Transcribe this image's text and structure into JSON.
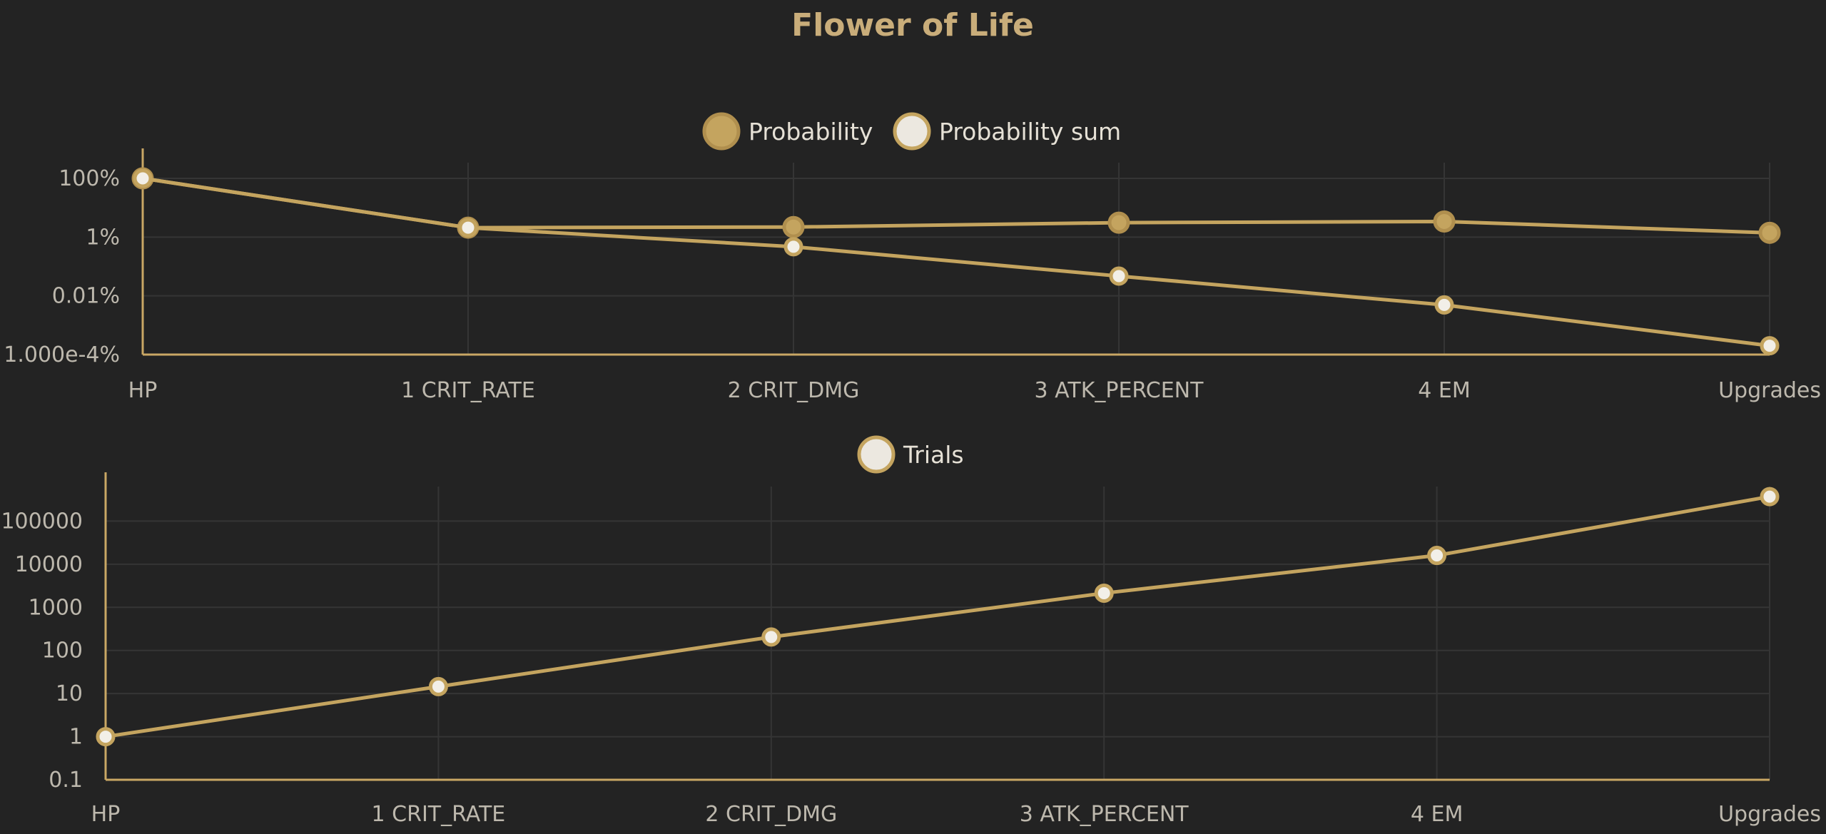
{
  "chart_data": [
    {
      "type": "line",
      "title": "Flower of Life",
      "categories": [
        "HP",
        "1 CRIT_RATE",
        "2 CRIT_DMG",
        "3 ATK_PERCENT",
        "4 EM",
        "Upgrades"
      ],
      "y_scale": "log",
      "y_tick_labels": [
        "100%",
        "1%",
        "0.01%",
        "1.000e-4%"
      ],
      "ylim": [
        "1.000e-4%",
        "100%"
      ],
      "grid": true,
      "legend_position": "top",
      "series": [
        {
          "name": "Probability",
          "values": [
            100,
            2.1,
            2.2,
            3.1,
            3.4,
            1.4
          ],
          "color": "#c4a45f",
          "marker": "filled"
        },
        {
          "name": "Probability sum",
          "values": [
            100,
            2.1,
            0.47,
            0.047,
            0.0049,
            0.0002
          ],
          "color": "#c4a45f",
          "marker": "hollow"
        }
      ]
    },
    {
      "type": "line",
      "categories": [
        "HP",
        "1 CRIT_RATE",
        "2 CRIT_DMG",
        "3 ATK_PERCENT",
        "4 EM",
        "Upgrades"
      ],
      "y_scale": "log",
      "y_tick_labels": [
        "100000",
        "10000",
        "1000",
        "100",
        "10",
        "1",
        "0.1"
      ],
      "ylim": [
        0.1,
        100000
      ],
      "grid": true,
      "legend_position": "top",
      "series": [
        {
          "name": "Trials",
          "values": [
            1,
            14.5,
            205,
            2130,
            16000,
            370000
          ],
          "color": "#c4a45f",
          "marker": "hollow"
        }
      ]
    }
  ]
}
